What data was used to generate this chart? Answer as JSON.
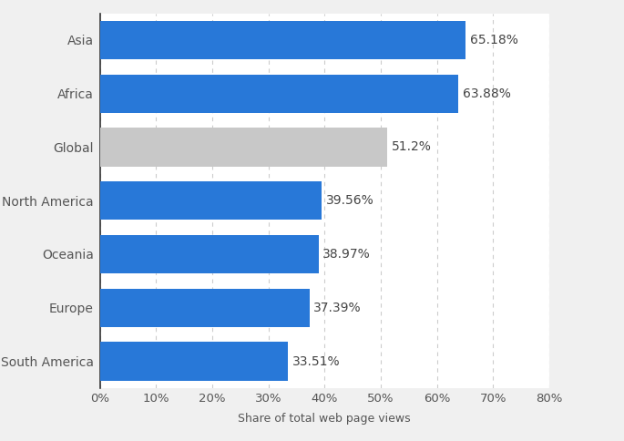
{
  "categories": [
    "South America",
    "Europe",
    "Oceania",
    "North America",
    "Global",
    "Africa",
    "Asia"
  ],
  "values": [
    33.51,
    37.39,
    38.97,
    39.56,
    51.2,
    63.88,
    65.18
  ],
  "labels": [
    "33.51%",
    "37.39%",
    "38.97%",
    "39.56%",
    "51.2%",
    "63.88%",
    "65.18%"
  ],
  "bar_colors": [
    "#2878d8",
    "#2878d8",
    "#2878d8",
    "#2878d8",
    "#c8c8c8",
    "#2878d8",
    "#2878d8"
  ],
  "xlabel": "Share of total web page views",
  "xlim": [
    0,
    80
  ],
  "xticks": [
    0,
    10,
    20,
    30,
    40,
    50,
    60,
    70,
    80
  ],
  "xtick_labels": [
    "0%",
    "10%",
    "20%",
    "30%",
    "40%",
    "50%",
    "60%",
    "70%",
    "80%"
  ],
  "bar_height": 0.72,
  "outer_background_color": "#f0f0f0",
  "plot_background_color": "#ffffff",
  "right_bg_color": "#ebebeb",
  "label_fontsize": 10,
  "xlabel_fontsize": 9,
  "tick_fontsize": 9.5,
  "label_color": "#555555",
  "value_label_color": "#444444",
  "grid_color": "#cccccc",
  "figsize": [
    6.85,
    4.84
  ],
  "dpi": 100
}
